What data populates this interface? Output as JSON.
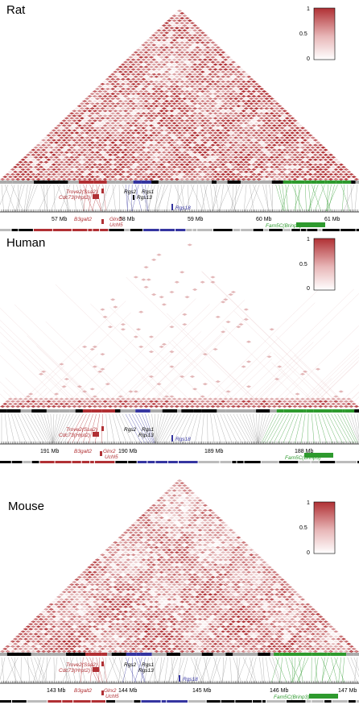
{
  "colors": {
    "heat": "#b03034",
    "gray_link": "#9a9a9a",
    "blue": "#3535a0",
    "green": "#2e9a2e",
    "red_gene": "#b03034",
    "black": "#000000"
  },
  "legend": {
    "ticks": [
      "1",
      "0.5",
      "0"
    ]
  },
  "panels": [
    {
      "title": "Rat",
      "density": 0.85,
      "fill_mode": "rat",
      "mb_labels": [
        "57 Mb",
        "58 Mb",
        "59 Mb",
        "60 Mb",
        "61 Mb"
      ],
      "genes": {
        "trove": "Trove2(Ssa2)",
        "cdc": "Cdc73(Hrpt2)",
        "b3": "B3galt2",
        "glrx": "Glrx2",
        "uchl": "Uchl5",
        "rgs2": "Rgs2",
        "rgs1": "Rgs1",
        "rgs13": "Rgs13",
        "rgs18": "Rgs18",
        "fam": "Fam5C(Brinp3)"
      }
    },
    {
      "title": "Human",
      "density": 0.25,
      "fill_mode": "human",
      "mb_labels": [
        "191 Mb",
        "190 Mb",
        "189 Mb",
        "188 Mb"
      ],
      "genes": {
        "trove": "Trove2(Ssa2)",
        "cdc": "Cdc73(Hrpt2)",
        "b3": "B3galt2",
        "glrx": "Glrx2",
        "uchl": "Uchl5",
        "rgs2": "Rgs2",
        "rgs1": "Rgs1",
        "rgs13": "Rgs13",
        "rgs18": "Rgs18",
        "fam": "Fam5C(Brinp3)"
      }
    },
    {
      "title": "Mouse",
      "density": 0.7,
      "fill_mode": "mouse",
      "mb_labels": [
        "143 Mb",
        "144 Mb",
        "145 Mb",
        "146 Mb",
        "147 Mb"
      ],
      "genes": {
        "trove": "Trove2(Ssa2)",
        "cdc": "Cdc73(Hrpt2)",
        "b3": "B3galt2",
        "glrx": "Glrx2",
        "uchl": "Uchl5",
        "rgs2": "Rgs2",
        "rgs1": "Rgs1",
        "rgs13": "Rgs13",
        "rgs18": "Rgs18",
        "fam": "Fam5C(Brinp3)"
      }
    }
  ]
}
